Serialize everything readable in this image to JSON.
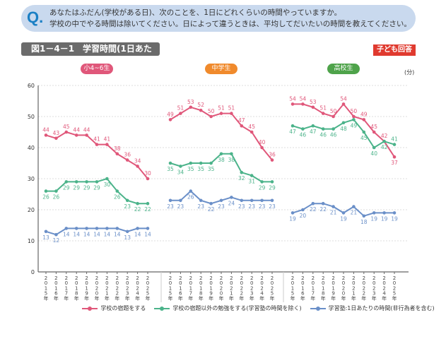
{
  "question": {
    "mark": "Q.",
    "line1": "あなたはふだん(学校がある日)、次のことを、1日にどれくらいの時間やっていますか。",
    "line2": "学校の中でやる時間は除いてください。日によって違うときは、平均してだいたいの時間を教えてください。"
  },
  "figure_title": "図1－4－1　学習時間(1日あたり)",
  "respondent_badge": "子ども回答",
  "chart_data": [
    {
      "type": "line",
      "title": "小4~6生",
      "title_color": "#e0577a",
      "x": [
        "2015年",
        "2016年",
        "2017年",
        "2018年",
        "2019年",
        "2020年",
        "2021年",
        "2022年",
        "2023年",
        "2024年",
        "2025年"
      ],
      "ylabel": "(分)",
      "ylim": [
        0,
        60
      ],
      "yticks": [
        0,
        10,
        20,
        30,
        40,
        50,
        60
      ],
      "grid": true,
      "series": [
        {
          "name": "学校の宿題をする",
          "color": "#e0577a",
          "values": [
            44,
            43,
            45,
            44,
            44,
            41,
            41,
            38,
            36,
            34,
            30
          ]
        },
        {
          "name": "学校の宿題以外の勉強をする(学習塾の時間を除く)",
          "color": "#4bb38a",
          "values": [
            26,
            26,
            29,
            29,
            29,
            29,
            30,
            26,
            23,
            22,
            22
          ]
        },
        {
          "name": "学習塾:1日あたりの時間(非行為者を含む)",
          "color": "#6a8fc8",
          "values": [
            13,
            12,
            14,
            14,
            14,
            14,
            14,
            14,
            13,
            14,
            14
          ]
        }
      ]
    },
    {
      "type": "line",
      "title": "中学生",
      "title_color": "#f08a2c",
      "x": [
        "2015年",
        "2016年",
        "2017年",
        "2018年",
        "2019年",
        "2020年",
        "2021年",
        "2022年",
        "2023年",
        "2024年",
        "2025年"
      ],
      "ylim": [
        0,
        60
      ],
      "series": [
        {
          "name": "学校の宿題をする",
          "color": "#e0577a",
          "values": [
            49,
            51,
            53,
            52,
            50,
            51,
            51,
            47,
            45,
            40,
            36
          ]
        },
        {
          "name": "学校の宿題以外の勉強をする(学習塾の時間を除く)",
          "color": "#4bb38a",
          "values": [
            35,
            34,
            35,
            35,
            35,
            38,
            38,
            32,
            31,
            29,
            29
          ]
        },
        {
          "name": "学習塾:1日あたりの時間(非行為者を含む)",
          "color": "#6a8fc8",
          "values": [
            23,
            23,
            26,
            23,
            22,
            23,
            24,
            23,
            23,
            23,
            23
          ]
        }
      ]
    },
    {
      "type": "line",
      "title": "高校生",
      "title_color": "#4ea34a",
      "x": [
        "2015年",
        "2016年",
        "2017年",
        "2018年",
        "2019年",
        "2020年",
        "2021年",
        "2022年",
        "2023年",
        "2024年",
        "2025年"
      ],
      "ylim": [
        0,
        60
      ],
      "series": [
        {
          "name": "学校の宿題をする",
          "color": "#e0577a",
          "values": [
            54,
            54,
            53,
            51,
            50,
            54,
            50,
            49,
            45,
            42,
            37
          ]
        },
        {
          "name": "学校の宿題以外の勉強をする(学習塾の時間を除く)",
          "color": "#4bb38a",
          "values": [
            47,
            46,
            47,
            46,
            46,
            48,
            49,
            45,
            40,
            42,
            41
          ]
        },
        {
          "name": "学習塾:1日あたりの時間(非行為者を含む)",
          "color": "#6a8fc8",
          "values": [
            19,
            20,
            22,
            22,
            21,
            19,
            21,
            18,
            19,
            19,
            19
          ]
        }
      ]
    }
  ]
}
